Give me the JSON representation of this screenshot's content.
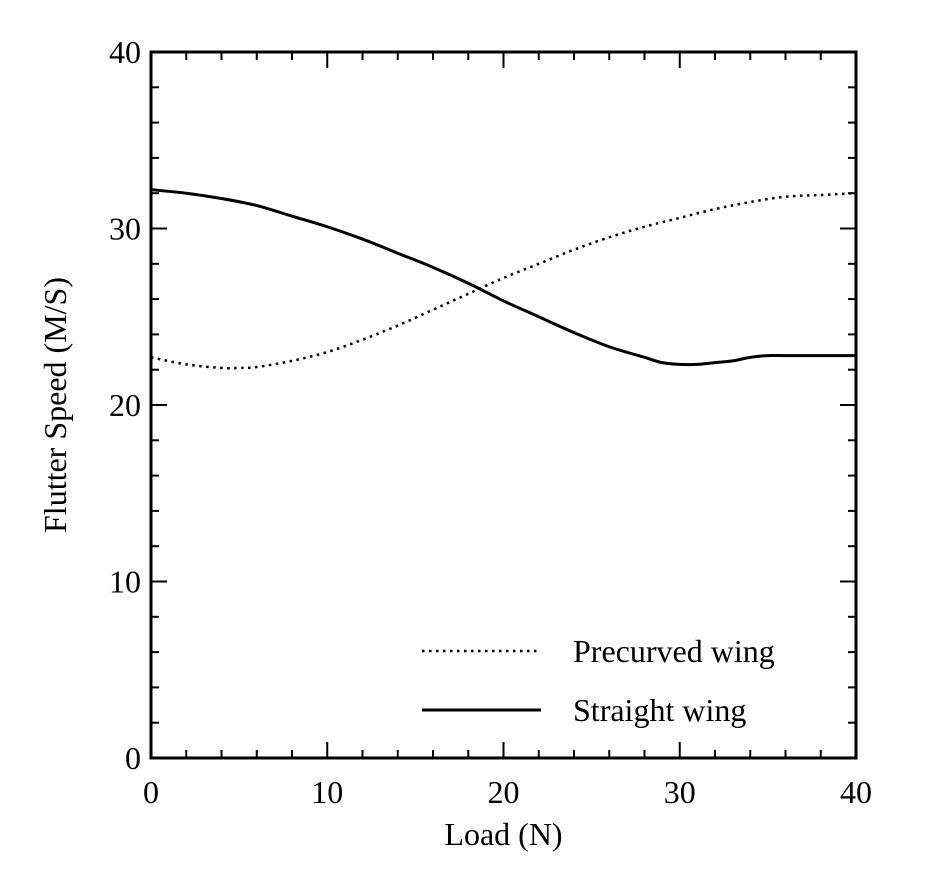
{
  "chart_data": {
    "type": "line",
    "title": "",
    "xlabel": "Load (N)",
    "ylabel": "Flutter Speed (M/S)",
    "xlim": [
      0,
      40
    ],
    "ylim": [
      0,
      40
    ],
    "x_ticks": [
      "0",
      "10",
      "20",
      "30",
      "40"
    ],
    "y_ticks": [
      "0",
      "10",
      "20",
      "30",
      "40"
    ],
    "x_tick_values": [
      0,
      10,
      20,
      30,
      40
    ],
    "y_tick_values": [
      0,
      10,
      20,
      30,
      40
    ],
    "grid": false,
    "legend_position": "bottom-right",
    "series": [
      {
        "name": "Precurved wing",
        "style": "dotted",
        "color": "#000000",
        "x": [
          0,
          2,
          4,
          5,
          6,
          8,
          10,
          12,
          14,
          16,
          18,
          20,
          22,
          24,
          26,
          28,
          30,
          32,
          34,
          36,
          38,
          40
        ],
        "y": [
          22.7,
          22.3,
          22.1,
          22.1,
          22.15,
          22.5,
          23.0,
          23.7,
          24.5,
          25.4,
          26.3,
          27.2,
          28.0,
          28.8,
          29.5,
          30.1,
          30.6,
          31.1,
          31.5,
          31.8,
          31.9,
          32.0
        ]
      },
      {
        "name": "Straight wing",
        "style": "solid",
        "color": "#000000",
        "x": [
          0,
          2,
          4,
          6,
          8,
          10,
          12,
          14,
          16,
          18,
          20,
          22,
          24,
          26,
          28,
          29,
          30,
          31,
          32,
          33,
          34,
          35,
          36,
          38,
          40
        ],
        "y": [
          32.2,
          32.0,
          31.7,
          31.3,
          30.7,
          30.1,
          29.4,
          28.6,
          27.8,
          26.9,
          25.9,
          25.0,
          24.1,
          23.3,
          22.7,
          22.4,
          22.3,
          22.3,
          22.4,
          22.5,
          22.7,
          22.8,
          22.8,
          22.8,
          22.8
        ]
      }
    ]
  }
}
